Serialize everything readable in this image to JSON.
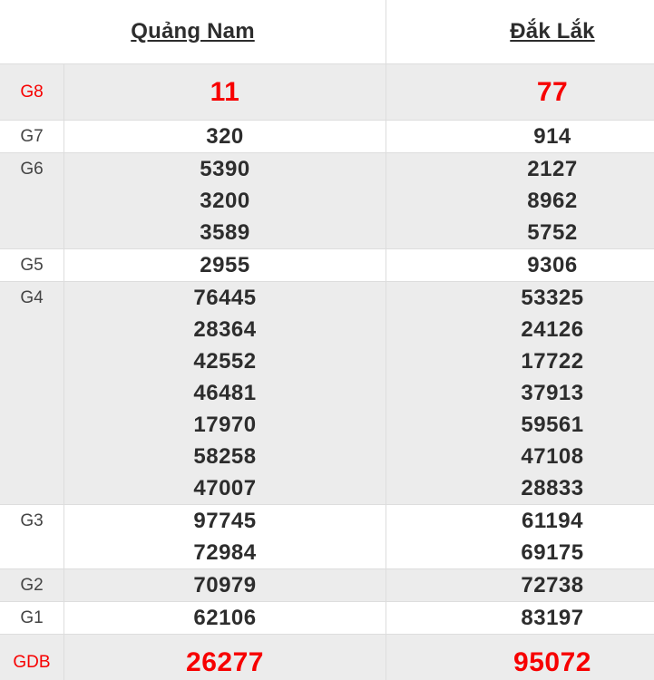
{
  "header": {
    "columns": [
      {
        "label": "Quảng Nam"
      },
      {
        "label": "Đắk Lắk"
      }
    ]
  },
  "table": {
    "rows": [
      {
        "label": "G8",
        "highlight": true,
        "shaded": true,
        "quang_nam": [
          "11"
        ],
        "dak_lak": [
          "77"
        ]
      },
      {
        "label": "G7",
        "highlight": false,
        "shaded": false,
        "quang_nam": [
          "320"
        ],
        "dak_lak": [
          "914"
        ]
      },
      {
        "label": "G6",
        "highlight": false,
        "shaded": true,
        "quang_nam": [
          "5390",
          "3200",
          "3589"
        ],
        "dak_lak": [
          "2127",
          "8962",
          "5752"
        ]
      },
      {
        "label": "G5",
        "highlight": false,
        "shaded": false,
        "quang_nam": [
          "2955"
        ],
        "dak_lak": [
          "9306"
        ]
      },
      {
        "label": "G4",
        "highlight": false,
        "shaded": true,
        "quang_nam": [
          "76445",
          "28364",
          "42552",
          "46481",
          "17970",
          "58258",
          "47007"
        ],
        "dak_lak": [
          "53325",
          "24126",
          "17722",
          "37913",
          "59561",
          "47108",
          "28833"
        ]
      },
      {
        "label": "G3",
        "highlight": false,
        "shaded": false,
        "quang_nam": [
          "97745",
          "72984"
        ],
        "dak_lak": [
          "61194",
          "69175"
        ]
      },
      {
        "label": "G2",
        "highlight": false,
        "shaded": true,
        "quang_nam": [
          "70979"
        ],
        "dak_lak": [
          "72738"
        ]
      },
      {
        "label": "G1",
        "highlight": false,
        "shaded": false,
        "quang_nam": [
          "62106"
        ],
        "dak_lak": [
          "83197"
        ]
      },
      {
        "label": "GDB",
        "highlight": true,
        "shaded": true,
        "quang_nam": [
          "26277"
        ],
        "dak_lak": [
          "95072"
        ]
      }
    ]
  },
  "colors": {
    "accent_red": "#f70000",
    "shaded_row_bg": "#ececec",
    "border": "#dddddd",
    "text_dark": "#2d2d2d",
    "label_text": "#444444"
  }
}
